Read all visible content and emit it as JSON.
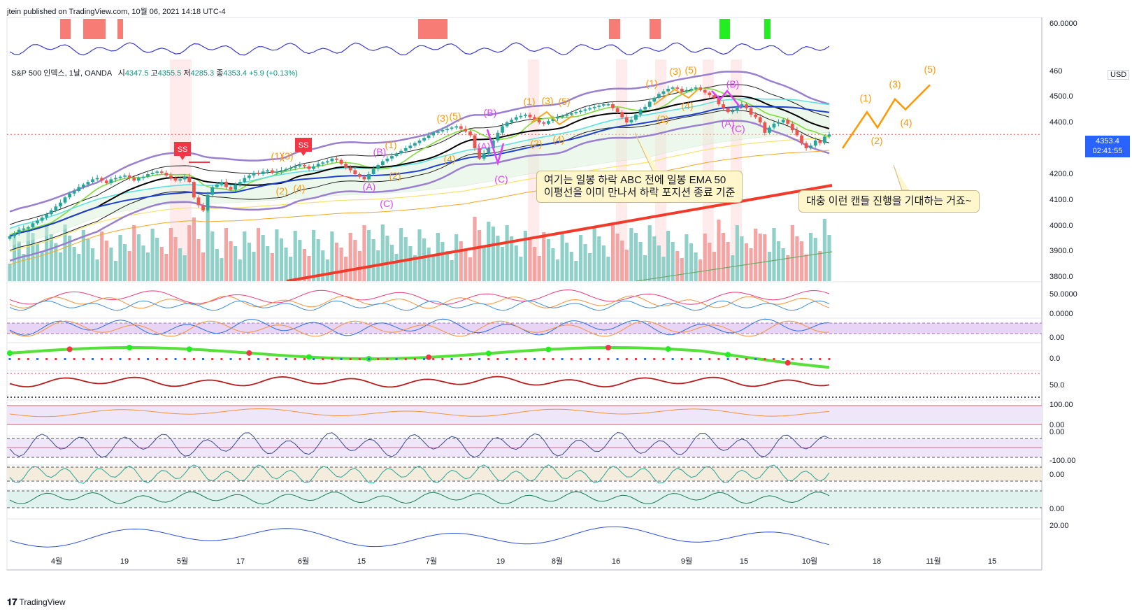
{
  "header": {
    "publisher_line": "jtein published on TradingView.com, 10월 06, 2021 14:18 UTC-4",
    "symbol_line_prefix": "S&P 500 인덱스, 1날, OANDA",
    "open_label": "시",
    "open_value": "4347.5",
    "high_label": "고",
    "high_value": "4355.5",
    "low_label": "저",
    "low_value": "4285.3",
    "close_label": "종",
    "close_value": "4353.4",
    "change": "+5.9 (+0.13%)"
  },
  "price_axis": {
    "currency": "USD",
    "current_price": "4353.4",
    "countdown": "02:41:55",
    "tick_labels": [
      "4500.0",
      "4400.0",
      "4200.0",
      "4100.0",
      "4000.0",
      "3900.0",
      "3800.0"
    ],
    "top_label": "460",
    "pane_labels": [
      "60.0000",
      "50.0000",
      "0.0000",
      "0.00",
      "0.0",
      "50.0",
      "100.00",
      "0.00",
      "0.00",
      "-100.00",
      "0.00",
      "0.00",
      "20.00"
    ]
  },
  "time_axis": {
    "labels": [
      "4월",
      "19",
      "5월",
      "17",
      "6월",
      "15",
      "7월",
      "19",
      "8월",
      "16",
      "9월",
      "15",
      "10월",
      "18",
      "11월",
      "15"
    ]
  },
  "annotations": {
    "note1_line1": "여기는 일봉 하락 ABC 전에 일봉 EMA 50",
    "note1_line2": "이평선을 이미 만나서 하락 포지션 종료 기준",
    "note2": "대충 이런 캔들 진행을 기대하는 거죠~",
    "ss_labels": [
      "SS",
      "SS"
    ],
    "wave_labels_orange": [
      "(1)",
      "(3)",
      "(2)",
      "(4)",
      "(1)",
      "(2)",
      "(3)",
      "(5)",
      "(4)",
      "(1)",
      "(3)",
      "(5)",
      "(2)",
      "(4)",
      "(1)",
      "(3)",
      "(5)",
      "(2)",
      "(4)",
      "(1)",
      "(2)",
      "(3)",
      "(4)",
      "(5)"
    ],
    "wave_labels_magenta": [
      "(A)",
      "(B)",
      "(C)",
      "(A)",
      "(B)",
      "(C)",
      "(A)",
      "(B)",
      "(C)"
    ]
  },
  "branding": {
    "name": "TradingView"
  },
  "colors": {
    "bull": "#26a69a",
    "bear": "#ef5350",
    "ema_black": "#000000",
    "ema_blue": "#1e40d0",
    "ema_green": "#7fdc3a",
    "ema_cyan": "#5ee0e0",
    "bb": "#9a7fd0",
    "trend": "#f23a2a",
    "wave_orange": "#ff9800",
    "wave_magenta": "#e040fb"
  },
  "chart_data": {
    "type": "candlestick",
    "title": "S&P 500 인덱스, 1날, OANDA",
    "ylabel": "USD",
    "ylim": [
      3780,
      4620
    ],
    "x_range": [
      "2021-03-29",
      "2021-11-19"
    ],
    "candles_close": [
      3960,
      3972,
      3985,
      3990,
      3995,
      4010,
      4020,
      4032,
      4045,
      4060,
      4075,
      4090,
      4110,
      4125,
      4135,
      4150,
      4160,
      4170,
      4180,
      4185,
      4175,
      4165,
      4180,
      4185,
      4190,
      4195,
      4185,
      4175,
      4185,
      4190,
      4200,
      4205,
      4210,
      4205,
      4195,
      4185,
      4175,
      4180,
      4190,
      4170,
      4110,
      4080,
      4060,
      4120,
      4150,
      4160,
      4170,
      4150,
      4140,
      4160,
      4170,
      4185,
      4195,
      4205,
      4200,
      4210,
      4215,
      4205,
      4210,
      4215,
      4220,
      4225,
      4230,
      4235,
      4230,
      4220,
      4230,
      4240,
      4245,
      4250,
      4260,
      4255,
      4240,
      4225,
      4215,
      4200,
      4190,
      4180,
      4200,
      4220,
      4235,
      4250,
      4260,
      4270,
      4280,
      4290,
      4300,
      4310,
      4320,
      4330,
      4340,
      4350,
      4360,
      4365,
      4370,
      4375,
      4380,
      4385,
      4375,
      4365,
      4350,
      4300,
      4260,
      4280,
      4300,
      4330,
      4360,
      4385,
      4400,
      4410,
      4420,
      4425,
      4430,
      4420,
      4410,
      4400,
      4395,
      4405,
      4415,
      4420,
      4425,
      4430,
      4435,
      4440,
      4445,
      4450,
      4455,
      4460,
      4465,
      4470,
      4470,
      4455,
      4440,
      4420,
      4400,
      4410,
      4430,
      4450,
      4460,
      4480,
      4495,
      4510,
      4520,
      4530,
      4535,
      4530,
      4520,
      4525,
      4530,
      4535,
      4525,
      4515,
      4505,
      4495,
      4470,
      4455,
      4440,
      4445,
      4460,
      4470,
      4455,
      4430,
      4420,
      4400,
      4360,
      4380,
      4395,
      4400,
      4410,
      4395,
      4370,
      4350,
      4320,
      4300,
      4310,
      4330,
      4320,
      4345,
      4353.4
    ],
    "forecast_path": [
      4300,
      4440,
      4380,
      4490,
      4450,
      4545
    ]
  }
}
